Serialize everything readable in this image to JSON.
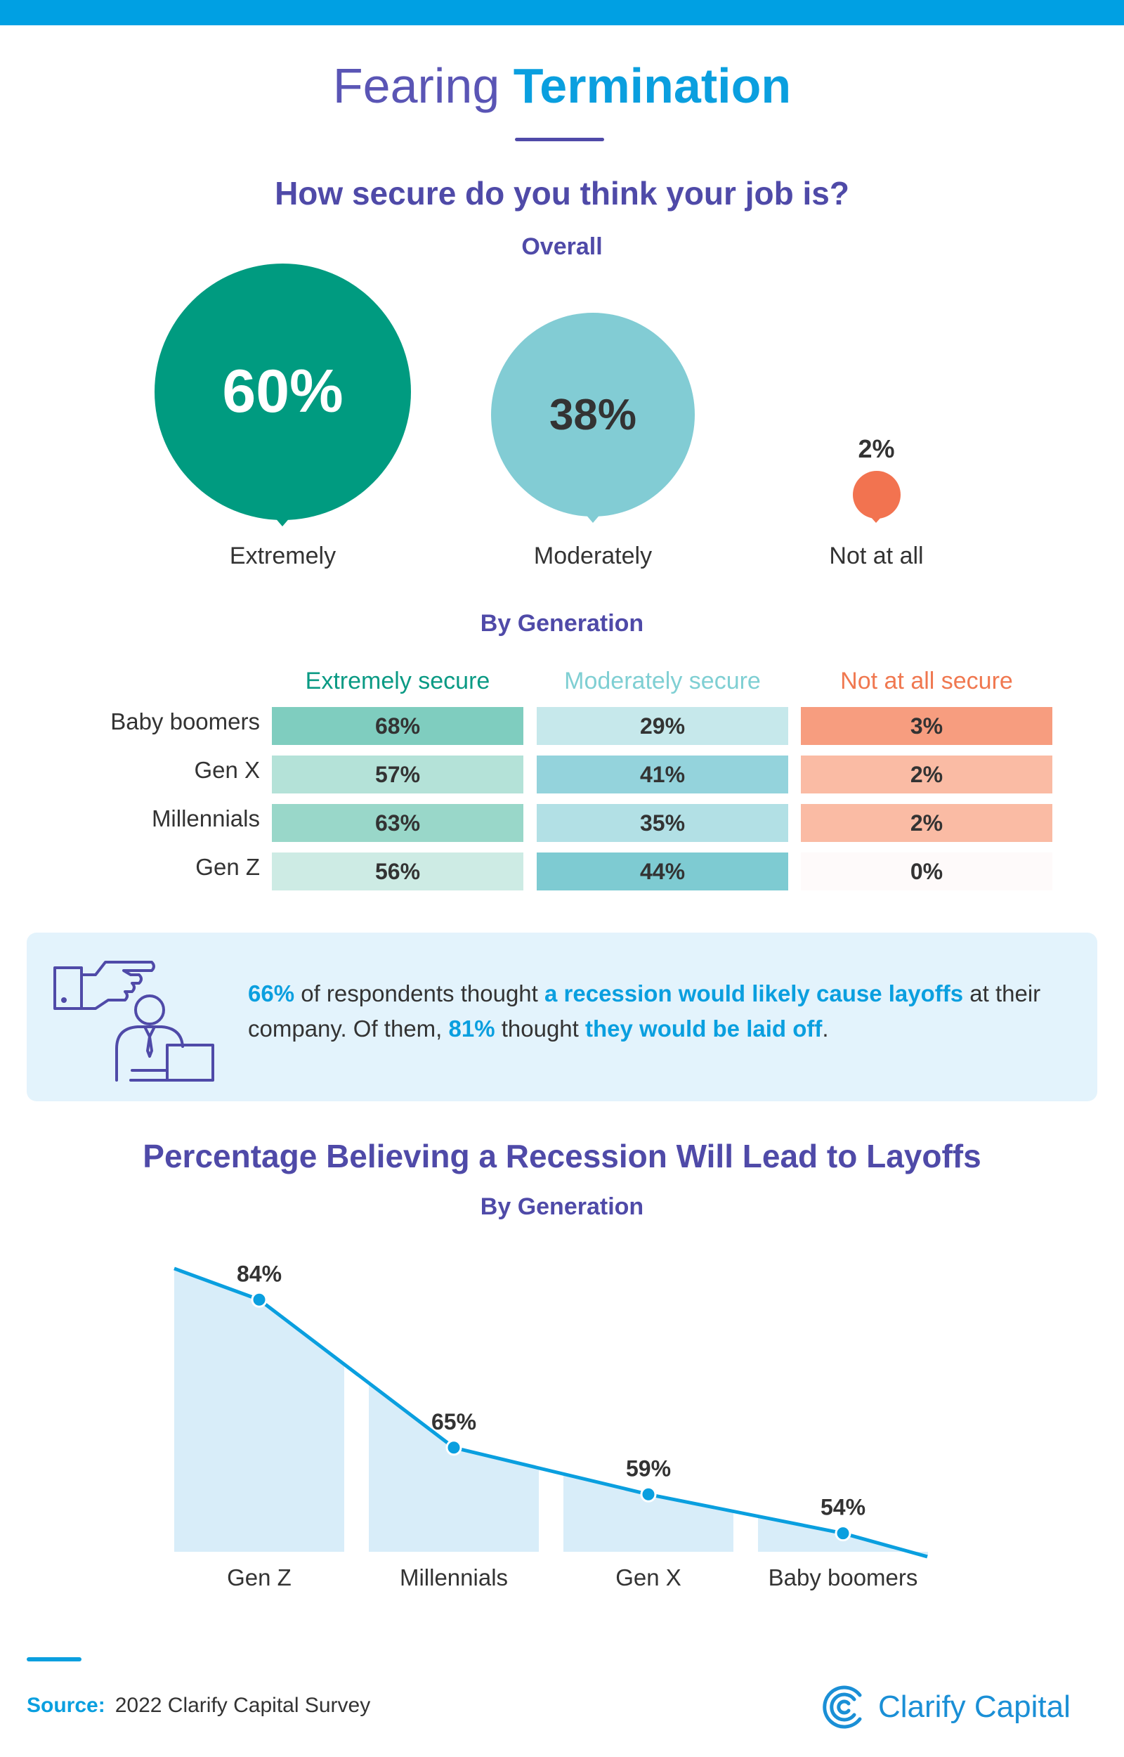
{
  "title": {
    "part1": "Fearing",
    "part2": "Termination"
  },
  "section1": {
    "question": "How secure do you think your job is?",
    "overall_heading": "Overall",
    "by_generation_heading": "By Generation"
  },
  "overall": [
    {
      "label": "Extremely",
      "value": "60%",
      "color": "#009b80"
    },
    {
      "label": "Moderately",
      "value": "38%",
      "color": "#82ccd4"
    },
    {
      "label": "Not at all",
      "value": "2%",
      "color": "#f27350"
    }
  ],
  "generation_table": {
    "columns": [
      {
        "label": "Extremely secure",
        "color": "#0a9a84"
      },
      {
        "label": "Moderately secure",
        "color": "#7fcfd3"
      },
      {
        "label": "Not at all secure",
        "color": "#f07850"
      }
    ],
    "rows": [
      {
        "label": "Baby boomers",
        "values": [
          "68%",
          "29%",
          "3%"
        ]
      },
      {
        "label": "Gen X",
        "values": [
          "57%",
          "41%",
          "2%"
        ]
      },
      {
        "label": "Millennials",
        "values": [
          "63%",
          "35%",
          "2%"
        ]
      },
      {
        "label": "Gen Z",
        "values": [
          "56%",
          "44%",
          "0%"
        ]
      }
    ]
  },
  "callout": {
    "stat1": "66%",
    "text1": " of respondents thought ",
    "highlight1": "a recession would likely cause layoffs",
    "text2": " at their company. Of them, ",
    "stat2": "81%",
    "text3": " thought ",
    "highlight2": "they would be laid off",
    "text4": "."
  },
  "section2": {
    "heading": "Percentage Believing a Recession Will Lead to Layoffs",
    "subheading": "By Generation"
  },
  "chart_data": [
    {
      "type": "table",
      "title": "How secure do you think your job is? — By Generation",
      "columns": [
        "Extremely secure",
        "Moderately secure",
        "Not at all secure"
      ],
      "rows": [
        "Baby boomers",
        "Gen X",
        "Millennials",
        "Gen Z"
      ],
      "values": [
        [
          68,
          29,
          3
        ],
        [
          57,
          41,
          2
        ],
        [
          63,
          35,
          2
        ],
        [
          56,
          44,
          0
        ]
      ]
    },
    {
      "type": "area",
      "title": "Percentage Believing a Recession Will Lead to Layoffs",
      "categories": [
        "Gen Z",
        "Millennials",
        "Gen X",
        "Baby boomers"
      ],
      "values": [
        84,
        65,
        59,
        54
      ],
      "value_labels": [
        "84%",
        "65%",
        "59%",
        "54%"
      ],
      "ylim": [
        0,
        100
      ],
      "line_color": "#0a9fdf",
      "fill_color": "#d8edf9"
    }
  ],
  "footer": {
    "source_label": "Source:",
    "source_text": "2022 Clarify Capital Survey",
    "brand": "Clarify Capital"
  }
}
